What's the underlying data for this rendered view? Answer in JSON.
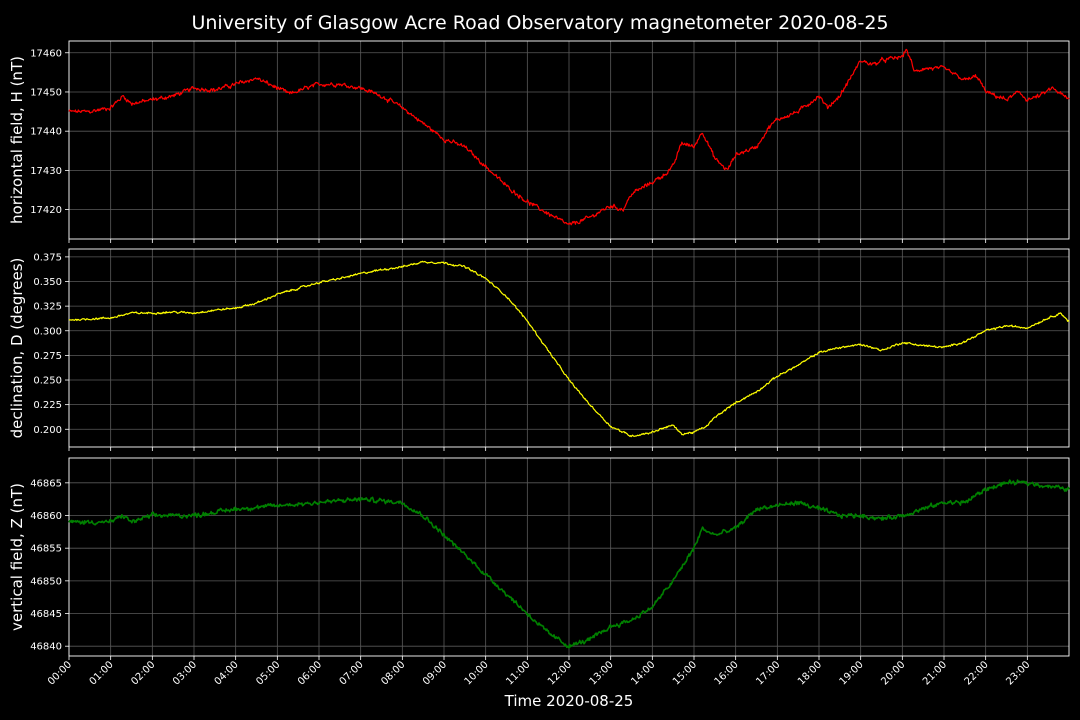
{
  "chart_data": {
    "type": "line",
    "title": "University of Glasgow Acre Road Observatory magnetometer 2020-08-25",
    "xlabel": "Time 2020-08-25",
    "x_unit": "hours",
    "xlim": [
      0,
      24
    ],
    "x_ticks": [
      "00:00",
      "01:00",
      "02:00",
      "03:00",
      "04:00",
      "05:00",
      "06:00",
      "07:00",
      "08:00",
      "09:00",
      "10:00",
      "11:00",
      "12:00",
      "13:00",
      "14:00",
      "15:00",
      "16:00",
      "17:00",
      "18:00",
      "19:00",
      "20:00",
      "21:00",
      "22:00",
      "23:00"
    ],
    "grid": true,
    "panels": [
      {
        "name": "H",
        "ylabel": "horizontal field, H (nT)",
        "color": "#ff0000",
        "ylim": [
          17412.5,
          17463
        ],
        "y_ticks": [
          17420,
          17430,
          17440,
          17450,
          17460
        ],
        "y_tick_labels": [
          "17420",
          "17430",
          "17440",
          "17450",
          "17460"
        ],
        "noise": 0.8,
        "points": [
          [
            0,
            17445
          ],
          [
            0.5,
            17445
          ],
          [
            1.0,
            17446
          ],
          [
            1.3,
            17449
          ],
          [
            1.5,
            17447
          ],
          [
            2.0,
            17448
          ],
          [
            2.5,
            17449
          ],
          [
            3.0,
            17451
          ],
          [
            3.5,
            17450.5
          ],
          [
            4.0,
            17452
          ],
          [
            4.5,
            17453.5
          ],
          [
            5.0,
            17451
          ],
          [
            5.3,
            17449.5
          ],
          [
            5.7,
            17451
          ],
          [
            6.0,
            17452
          ],
          [
            6.5,
            17452
          ],
          [
            7.0,
            17451
          ],
          [
            7.5,
            17449
          ],
          [
            8.0,
            17446
          ],
          [
            8.5,
            17442
          ],
          [
            9.0,
            17438
          ],
          [
            9.5,
            17436
          ],
          [
            10.0,
            17431
          ],
          [
            10.5,
            17426
          ],
          [
            11.0,
            17422
          ],
          [
            11.5,
            17419
          ],
          [
            12.0,
            17416
          ],
          [
            12.5,
            17418
          ],
          [
            13.0,
            17421
          ],
          [
            13.3,
            17420
          ],
          [
            13.5,
            17424
          ],
          [
            14.0,
            17427
          ],
          [
            14.3,
            17429
          ],
          [
            14.5,
            17431
          ],
          [
            14.7,
            17437
          ],
          [
            15.0,
            17436
          ],
          [
            15.2,
            17440
          ],
          [
            15.5,
            17433
          ],
          [
            15.8,
            17430
          ],
          [
            16.0,
            17434
          ],
          [
            16.5,
            17436
          ],
          [
            16.8,
            17441
          ],
          [
            17.0,
            17443
          ],
          [
            17.5,
            17445
          ],
          [
            18.0,
            17449
          ],
          [
            18.2,
            17446
          ],
          [
            18.5,
            17449
          ],
          [
            19.0,
            17458
          ],
          [
            19.3,
            17457
          ],
          [
            19.5,
            17458
          ],
          [
            20.0,
            17459
          ],
          [
            20.1,
            17461
          ],
          [
            20.3,
            17455
          ],
          [
            20.5,
            17456
          ],
          [
            21.0,
            17456
          ],
          [
            21.5,
            17453
          ],
          [
            21.8,
            17454
          ],
          [
            22.0,
            17450
          ],
          [
            22.5,
            17448
          ],
          [
            22.8,
            17450
          ],
          [
            23.0,
            17448
          ],
          [
            23.3,
            17449
          ],
          [
            23.6,
            17451
          ],
          [
            24.0,
            17448
          ]
        ]
      },
      {
        "name": "D",
        "ylabel": "declination, D (degrees)",
        "color": "#ffff00",
        "ylim": [
          0.182,
          0.383
        ],
        "y_ticks": [
          0.2,
          0.225,
          0.25,
          0.275,
          0.3,
          0.325,
          0.35,
          0.375
        ],
        "y_tick_labels": [
          "0.200",
          "0.225",
          "0.250",
          "0.275",
          "0.300",
          "0.325",
          "0.350",
          "0.375"
        ],
        "noise": 0.0015,
        "points": [
          [
            0,
            0.311
          ],
          [
            1.0,
            0.313
          ],
          [
            1.5,
            0.318
          ],
          [
            2.0,
            0.318
          ],
          [
            2.5,
            0.319
          ],
          [
            3.0,
            0.318
          ],
          [
            3.5,
            0.321
          ],
          [
            4.0,
            0.323
          ],
          [
            4.5,
            0.328
          ],
          [
            5.0,
            0.337
          ],
          [
            5.5,
            0.343
          ],
          [
            6.0,
            0.349
          ],
          [
            6.5,
            0.353
          ],
          [
            7.0,
            0.358
          ],
          [
            7.5,
            0.362
          ],
          [
            8.0,
            0.365
          ],
          [
            8.5,
            0.37
          ],
          [
            9.0,
            0.369
          ],
          [
            9.5,
            0.365
          ],
          [
            10.0,
            0.353
          ],
          [
            10.5,
            0.335
          ],
          [
            11.0,
            0.31
          ],
          [
            11.5,
            0.28
          ],
          [
            12.0,
            0.25
          ],
          [
            12.5,
            0.225
          ],
          [
            13.0,
            0.203
          ],
          [
            13.5,
            0.193
          ],
          [
            14.0,
            0.197
          ],
          [
            14.3,
            0.202
          ],
          [
            14.5,
            0.204
          ],
          [
            14.7,
            0.195
          ],
          [
            15.0,
            0.197
          ],
          [
            15.3,
            0.203
          ],
          [
            15.5,
            0.212
          ],
          [
            16.0,
            0.227
          ],
          [
            16.5,
            0.238
          ],
          [
            17.0,
            0.254
          ],
          [
            17.5,
            0.265
          ],
          [
            18.0,
            0.278
          ],
          [
            18.5,
            0.283
          ],
          [
            19.0,
            0.286
          ],
          [
            19.3,
            0.283
          ],
          [
            19.5,
            0.28
          ],
          [
            20.0,
            0.288
          ],
          [
            20.5,
            0.285
          ],
          [
            21.0,
            0.283
          ],
          [
            21.5,
            0.289
          ],
          [
            22.0,
            0.3
          ],
          [
            22.5,
            0.305
          ],
          [
            23.0,
            0.303
          ],
          [
            23.5,
            0.313
          ],
          [
            23.8,
            0.318
          ],
          [
            24.0,
            0.309
          ]
        ]
      },
      {
        "name": "Z",
        "ylabel": "vertical field, Z (nT)",
        "color": "#008000",
        "ylim": [
          46838.5,
          46868.8
        ],
        "y_ticks": [
          46840,
          46845,
          46850,
          46855,
          46860,
          46865
        ],
        "y_tick_labels": [
          "46840",
          "46845",
          "46850",
          "46855",
          "46860",
          "46865"
        ],
        "noise": 0.5,
        "points": [
          [
            0,
            46859
          ],
          [
            1.0,
            46859
          ],
          [
            1.3,
            46860
          ],
          [
            1.5,
            46859
          ],
          [
            2.0,
            46860
          ],
          [
            3.0,
            46860
          ],
          [
            4.0,
            46861
          ],
          [
            5.0,
            46861.5
          ],
          [
            6.0,
            46862
          ],
          [
            7.0,
            46862.5
          ],
          [
            8.0,
            46862
          ],
          [
            8.5,
            46860
          ],
          [
            9.0,
            46857
          ],
          [
            9.5,
            46854
          ],
          [
            10.0,
            46851
          ],
          [
            10.5,
            46848
          ],
          [
            11.0,
            46845
          ],
          [
            11.5,
            46842
          ],
          [
            12.0,
            46840
          ],
          [
            12.5,
            46841
          ],
          [
            13.0,
            46843
          ],
          [
            13.5,
            46844
          ],
          [
            14.0,
            46846
          ],
          [
            14.5,
            46850
          ],
          [
            14.8,
            46853
          ],
          [
            15.0,
            46855
          ],
          [
            15.2,
            46858
          ],
          [
            15.5,
            46857
          ],
          [
            16.0,
            46858
          ],
          [
            16.5,
            46861
          ],
          [
            17.0,
            46861.5
          ],
          [
            17.5,
            46862
          ],
          [
            18.0,
            46861
          ],
          [
            18.5,
            46860
          ],
          [
            19.0,
            46860
          ],
          [
            19.5,
            46859.5
          ],
          [
            20.0,
            46860
          ],
          [
            20.5,
            46861
          ],
          [
            21.0,
            46862
          ],
          [
            21.5,
            46862
          ],
          [
            22.0,
            46864
          ],
          [
            22.5,
            46865
          ],
          [
            23.0,
            46865
          ],
          [
            23.5,
            46864.5
          ],
          [
            24.0,
            46864
          ]
        ]
      }
    ]
  }
}
